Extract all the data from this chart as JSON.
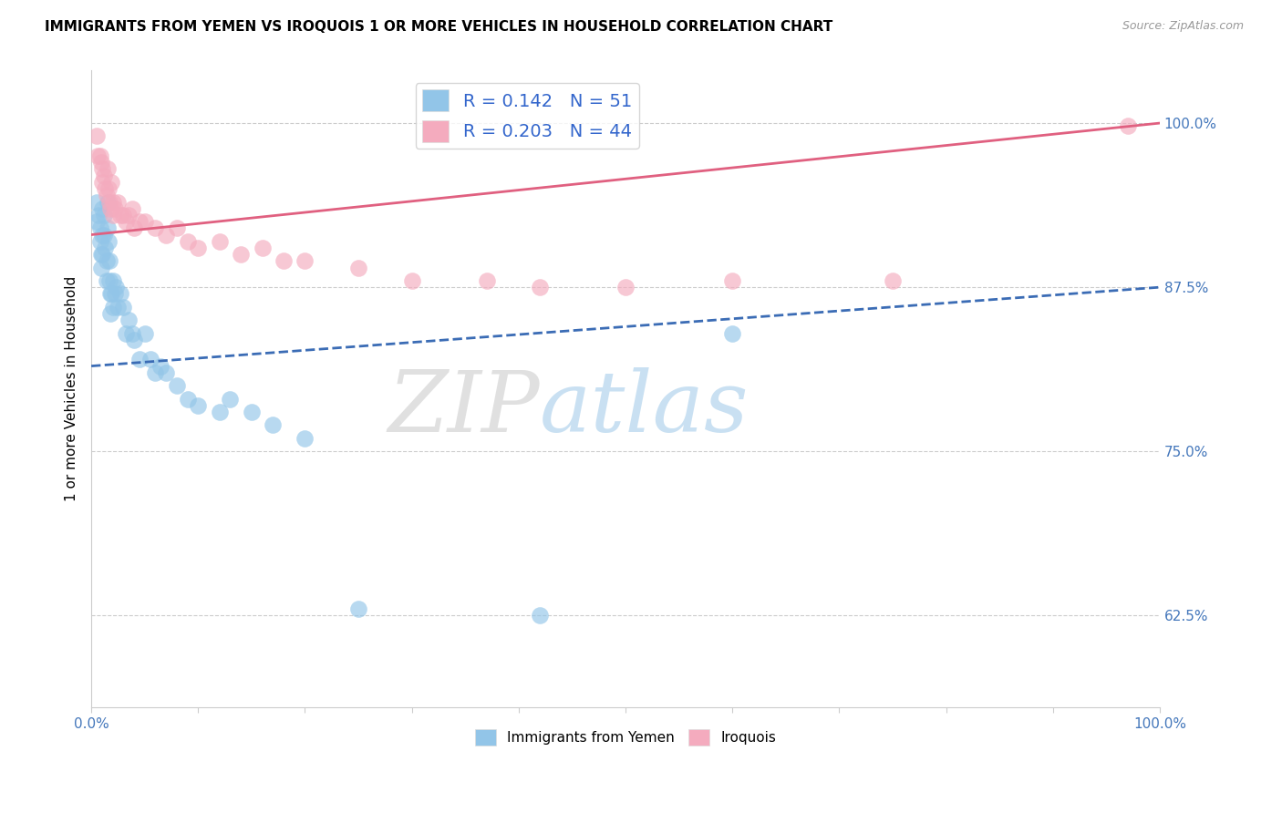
{
  "title": "IMMIGRANTS FROM YEMEN VS IROQUOIS 1 OR MORE VEHICLES IN HOUSEHOLD CORRELATION CHART",
  "source": "Source: ZipAtlas.com",
  "ylabel": "1 or more Vehicles in Household",
  "ytick_values": [
    0.625,
    0.75,
    0.875,
    1.0
  ],
  "xlim": [
    0.0,
    1.0
  ],
  "ylim": [
    0.555,
    1.04
  ],
  "legend_blue_r": "0.142",
  "legend_blue_n": "51",
  "legend_pink_r": "0.203",
  "legend_pink_n": "44",
  "blue_color": "#92C5E8",
  "pink_color": "#F4ABBE",
  "blue_line_color": "#3B6CB5",
  "pink_line_color": "#E06080",
  "watermark_zip": "ZIP",
  "watermark_atlas": "atlas",
  "blue_scatter_x": [
    0.005,
    0.005,
    0.007,
    0.008,
    0.008,
    0.009,
    0.009,
    0.01,
    0.01,
    0.01,
    0.012,
    0.012,
    0.013,
    0.014,
    0.014,
    0.015,
    0.015,
    0.016,
    0.017,
    0.017,
    0.018,
    0.018,
    0.019,
    0.02,
    0.02,
    0.022,
    0.023,
    0.025,
    0.027,
    0.03,
    0.032,
    0.035,
    0.038,
    0.04,
    0.045,
    0.05,
    0.055,
    0.06,
    0.065,
    0.07,
    0.08,
    0.09,
    0.1,
    0.12,
    0.13,
    0.15,
    0.17,
    0.2,
    0.25,
    0.42,
    0.6
  ],
  "blue_scatter_y": [
    0.94,
    0.925,
    0.93,
    0.92,
    0.91,
    0.9,
    0.89,
    0.935,
    0.915,
    0.9,
    0.93,
    0.915,
    0.905,
    0.895,
    0.88,
    0.94,
    0.92,
    0.91,
    0.895,
    0.88,
    0.87,
    0.855,
    0.87,
    0.86,
    0.88,
    0.87,
    0.875,
    0.86,
    0.87,
    0.86,
    0.84,
    0.85,
    0.84,
    0.835,
    0.82,
    0.84,
    0.82,
    0.81,
    0.815,
    0.81,
    0.8,
    0.79,
    0.785,
    0.78,
    0.79,
    0.78,
    0.77,
    0.76,
    0.63,
    0.625,
    0.84
  ],
  "pink_scatter_x": [
    0.005,
    0.006,
    0.008,
    0.009,
    0.01,
    0.01,
    0.012,
    0.013,
    0.014,
    0.015,
    0.016,
    0.017,
    0.018,
    0.019,
    0.02,
    0.02,
    0.022,
    0.025,
    0.027,
    0.03,
    0.032,
    0.035,
    0.038,
    0.04,
    0.045,
    0.05,
    0.06,
    0.07,
    0.08,
    0.09,
    0.1,
    0.12,
    0.14,
    0.16,
    0.18,
    0.2,
    0.25,
    0.3,
    0.37,
    0.42,
    0.5,
    0.6,
    0.75,
    0.97
  ],
  "pink_scatter_y": [
    0.99,
    0.975,
    0.975,
    0.97,
    0.965,
    0.955,
    0.96,
    0.95,
    0.945,
    0.965,
    0.95,
    0.94,
    0.935,
    0.955,
    0.94,
    0.93,
    0.935,
    0.94,
    0.93,
    0.93,
    0.925,
    0.93,
    0.935,
    0.92,
    0.925,
    0.925,
    0.92,
    0.915,
    0.92,
    0.91,
    0.905,
    0.91,
    0.9,
    0.905,
    0.895,
    0.895,
    0.89,
    0.88,
    0.88,
    0.875,
    0.875,
    0.88,
    0.88,
    0.998
  ],
  "blue_line_x_start": 0.0,
  "blue_line_x_end": 1.0,
  "blue_line_y_start": 0.815,
  "blue_line_y_end": 0.875,
  "pink_line_x_start": 0.0,
  "pink_line_x_end": 1.0,
  "pink_line_y_start": 0.915,
  "pink_line_y_end": 1.0
}
